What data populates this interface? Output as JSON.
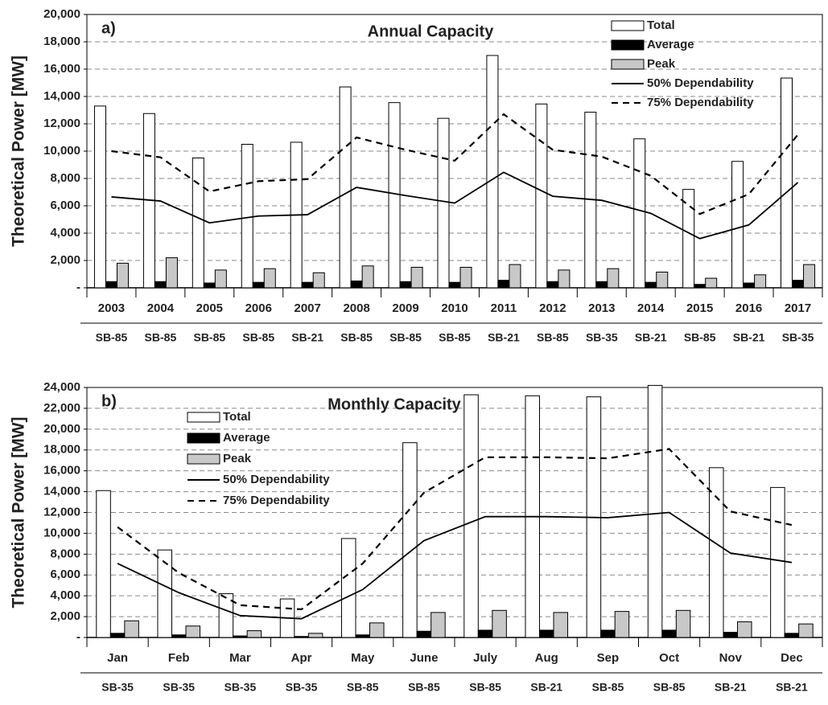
{
  "chart_data": [
    {
      "type": "bar",
      "panel_label": "a)",
      "title": "Annual Capacity",
      "ylabel": "Theoretical Power [MW]",
      "categories": [
        "2003",
        "2004",
        "2005",
        "2006",
        "2007",
        "2008",
        "2009",
        "2010",
        "2011",
        "2012",
        "2013",
        "2014",
        "2015",
        "2016",
        "2017"
      ],
      "secondary_categories": [
        "SB-85",
        "SB-85",
        "SB-85",
        "SB-85",
        "SB-21",
        "SB-85",
        "SB-85",
        "SB-85",
        "SB-21",
        "SB-85",
        "SB-35",
        "SB-21",
        "SB-85",
        "SB-21",
        "SB-35"
      ],
      "series": [
        {
          "name": "Total",
          "type": "bar",
          "color": "#ffffff",
          "values": [
            13300,
            12750,
            9500,
            10500,
            10650,
            14700,
            13550,
            12400,
            17000,
            13450,
            12850,
            10900,
            7200,
            9250,
            15350
          ]
        },
        {
          "name": "Average",
          "type": "bar",
          "color": "#000000",
          "values": [
            450,
            450,
            350,
            400,
            400,
            500,
            450,
            400,
            550,
            450,
            450,
            400,
            250,
            350,
            550
          ]
        },
        {
          "name": "Peak",
          "type": "bar",
          "color": "#c8c8c8",
          "values": [
            1800,
            2200,
            1300,
            1400,
            1100,
            1600,
            1500,
            1500,
            1700,
            1300,
            1400,
            1150,
            700,
            950,
            1700
          ]
        },
        {
          "name": "50% Dependability",
          "type": "line",
          "linestyle": "solid",
          "color": "#000000",
          "values": [
            6650,
            6350,
            4750,
            5250,
            5350,
            7350,
            6750,
            6200,
            8450,
            6700,
            6400,
            5450,
            3600,
            4600,
            7700
          ]
        },
        {
          "name": "75% Dependability",
          "type": "line",
          "linestyle": "dashed",
          "color": "#000000",
          "values": [
            10000,
            9550,
            7050,
            7800,
            7950,
            11000,
            10100,
            9300,
            12700,
            10100,
            9600,
            8200,
            5400,
            6850,
            11200
          ]
        }
      ],
      "ylim": [
        0,
        20000
      ],
      "yticks": [
        {
          "value": 0,
          "label": "-"
        },
        {
          "value": 2000,
          "label": "2,000"
        },
        {
          "value": 4000,
          "label": "4,000"
        },
        {
          "value": 6000,
          "label": "6,000"
        },
        {
          "value": 8000,
          "label": "8,000"
        },
        {
          "value": 10000,
          "label": "10,000"
        },
        {
          "value": 12000,
          "label": "12,000"
        },
        {
          "value": 14000,
          "label": "14,000"
        },
        {
          "value": 16000,
          "label": "16,000"
        },
        {
          "value": 18000,
          "label": "18,000"
        },
        {
          "value": 20000,
          "label": "20,000"
        }
      ],
      "grid": true,
      "legend": "upper right"
    },
    {
      "type": "bar",
      "panel_label": "b)",
      "title": "Monthly Capacity",
      "ylabel": "Theoretical Power [MW]",
      "categories": [
        "Jan",
        "Feb",
        "Mar",
        "Apr",
        "May",
        "June",
        "July",
        "Aug",
        "Sep",
        "Oct",
        "Nov",
        "Dec"
      ],
      "secondary_categories": [
        "SB-35",
        "SB-35",
        "SB-35",
        "SB-35",
        "SB-85",
        "SB-85",
        "SB-85",
        "SB-21",
        "SB-85",
        "SB-85",
        "SB-21",
        "SB-21"
      ],
      "series": [
        {
          "name": "Total",
          "type": "bar",
          "color": "#ffffff",
          "values": [
            14100,
            8400,
            4200,
            3700,
            9500,
            18700,
            23300,
            23200,
            23100,
            24200,
            16300,
            14400
          ]
        },
        {
          "name": "Average",
          "type": "bar",
          "color": "#000000",
          "values": [
            400,
            250,
            150,
            100,
            250,
            600,
            700,
            700,
            700,
            700,
            500,
            400
          ]
        },
        {
          "name": "Peak",
          "type": "bar",
          "color": "#c8c8c8",
          "values": [
            1600,
            1100,
            650,
            400,
            1400,
            2400,
            2600,
            2400,
            2500,
            2600,
            1500,
            1300
          ]
        },
        {
          "name": "50% Dependability",
          "type": "line",
          "linestyle": "solid",
          "color": "#000000",
          "values": [
            7100,
            4300,
            2100,
            1800,
            4600,
            9300,
            11600,
            11600,
            11500,
            12000,
            8100,
            7200
          ]
        },
        {
          "name": "75% Dependability",
          "type": "line",
          "linestyle": "dashed",
          "color": "#000000",
          "values": [
            10600,
            6200,
            3100,
            2700,
            7100,
            13900,
            17300,
            17300,
            17200,
            18100,
            12100,
            10800
          ]
        }
      ],
      "ylim": [
        0,
        24000
      ],
      "yticks": [
        {
          "value": 0,
          "label": "-"
        },
        {
          "value": 2000,
          "label": "2,000"
        },
        {
          "value": 4000,
          "label": "4,000"
        },
        {
          "value": 6000,
          "label": "6,000"
        },
        {
          "value": 8000,
          "label": "8,000"
        },
        {
          "value": 10000,
          "label": "10,000"
        },
        {
          "value": 12000,
          "label": "12,000"
        },
        {
          "value": 14000,
          "label": "14,000"
        },
        {
          "value": 16000,
          "label": "16,000"
        },
        {
          "value": 18000,
          "label": "18,000"
        },
        {
          "value": 20000,
          "label": "20,000"
        },
        {
          "value": 22000,
          "label": "22,000"
        },
        {
          "value": 24000,
          "label": "24,000"
        }
      ],
      "grid": true,
      "legend": "upper left"
    }
  ]
}
